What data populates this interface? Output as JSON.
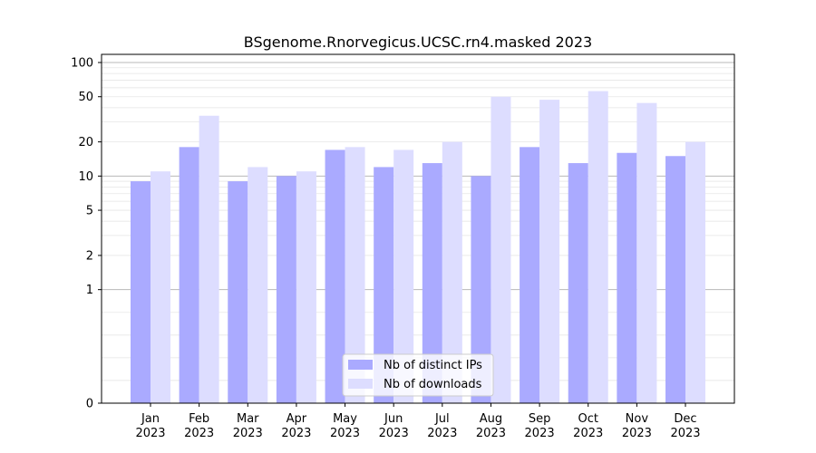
{
  "chart_data": {
    "type": "bar",
    "title": "BSgenome.Rnorvegicus.UCSC.rn4.masked 2023",
    "xlabel": "",
    "ylabel": "",
    "yscale": "symlog",
    "ylim": [
      0,
      120
    ],
    "yticks": [
      0,
      1,
      2,
      5,
      10,
      20,
      50,
      100
    ],
    "grid": "horizontal",
    "legend_position": "bottom-center",
    "categories": [
      [
        "Jan",
        "2023"
      ],
      [
        "Feb",
        "2023"
      ],
      [
        "Mar",
        "2023"
      ],
      [
        "Apr",
        "2023"
      ],
      [
        "May",
        "2023"
      ],
      [
        "Jun",
        "2023"
      ],
      [
        "Jul",
        "2023"
      ],
      [
        "Aug",
        "2023"
      ],
      [
        "Sep",
        "2023"
      ],
      [
        "Oct",
        "2023"
      ],
      [
        "Nov",
        "2023"
      ],
      [
        "Dec",
        "2023"
      ]
    ],
    "series": [
      {
        "name": "Nb of distinct IPs",
        "color": "#aaaaff",
        "values": [
          9,
          18,
          9,
          10,
          17,
          12,
          13,
          10,
          18,
          13,
          16,
          15
        ]
      },
      {
        "name": "Nb of downloads",
        "color": "#ddddff",
        "values": [
          11,
          34,
          12,
          11,
          18,
          17,
          20,
          50,
          47,
          56,
          44,
          20
        ]
      }
    ]
  }
}
